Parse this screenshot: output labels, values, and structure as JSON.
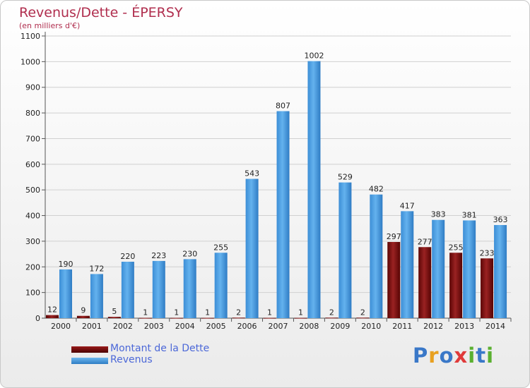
{
  "header": {
    "title": "Revenus/Dette - ÉPERSY",
    "subtitle": "(en milliers d'€)"
  },
  "colors": {
    "dette": "#7a0e0e",
    "revenus": "#4ca0e0",
    "title": "#b02e4e",
    "legend_text": "#4c68d8"
  },
  "chart_data": {
    "type": "bar",
    "title": "Revenus/Dette - ÉPERSY",
    "subtitle": "(en milliers d'€)",
    "categories": [
      "2000",
      "2001",
      "2002",
      "2003",
      "2004",
      "2005",
      "2006",
      "2007",
      "2008",
      "2009",
      "2010",
      "2011",
      "2012",
      "2013",
      "2014"
    ],
    "series": [
      {
        "name": "Montant de la Dette",
        "values": [
          12,
          9,
          5,
          1,
          1,
          1,
          2,
          1,
          1,
          2,
          2,
          297,
          277,
          255,
          233
        ]
      },
      {
        "name": "Revenus",
        "values": [
          190,
          172,
          220,
          223,
          230,
          255,
          543,
          807,
          1002,
          529,
          482,
          417,
          383,
          381,
          363
        ]
      }
    ],
    "ylim": [
      0,
      1100
    ],
    "yticks": [
      0,
      100,
      200,
      300,
      400,
      500,
      600,
      700,
      800,
      900,
      1000,
      1100
    ],
    "grid": true,
    "legend_position": "bottom-left"
  },
  "legend": {
    "dette_label": "Montant de la Dette",
    "revenus_label": "Revenus"
  },
  "logo": {
    "letters": [
      "P",
      "r",
      "o",
      "x",
      "i",
      "t",
      "i"
    ],
    "colors": [
      "#3a78c8",
      "#e8a020",
      "#3a78c8",
      "#e03a3a",
      "#5ab030",
      "#3a78c8",
      "#5ab030"
    ]
  }
}
